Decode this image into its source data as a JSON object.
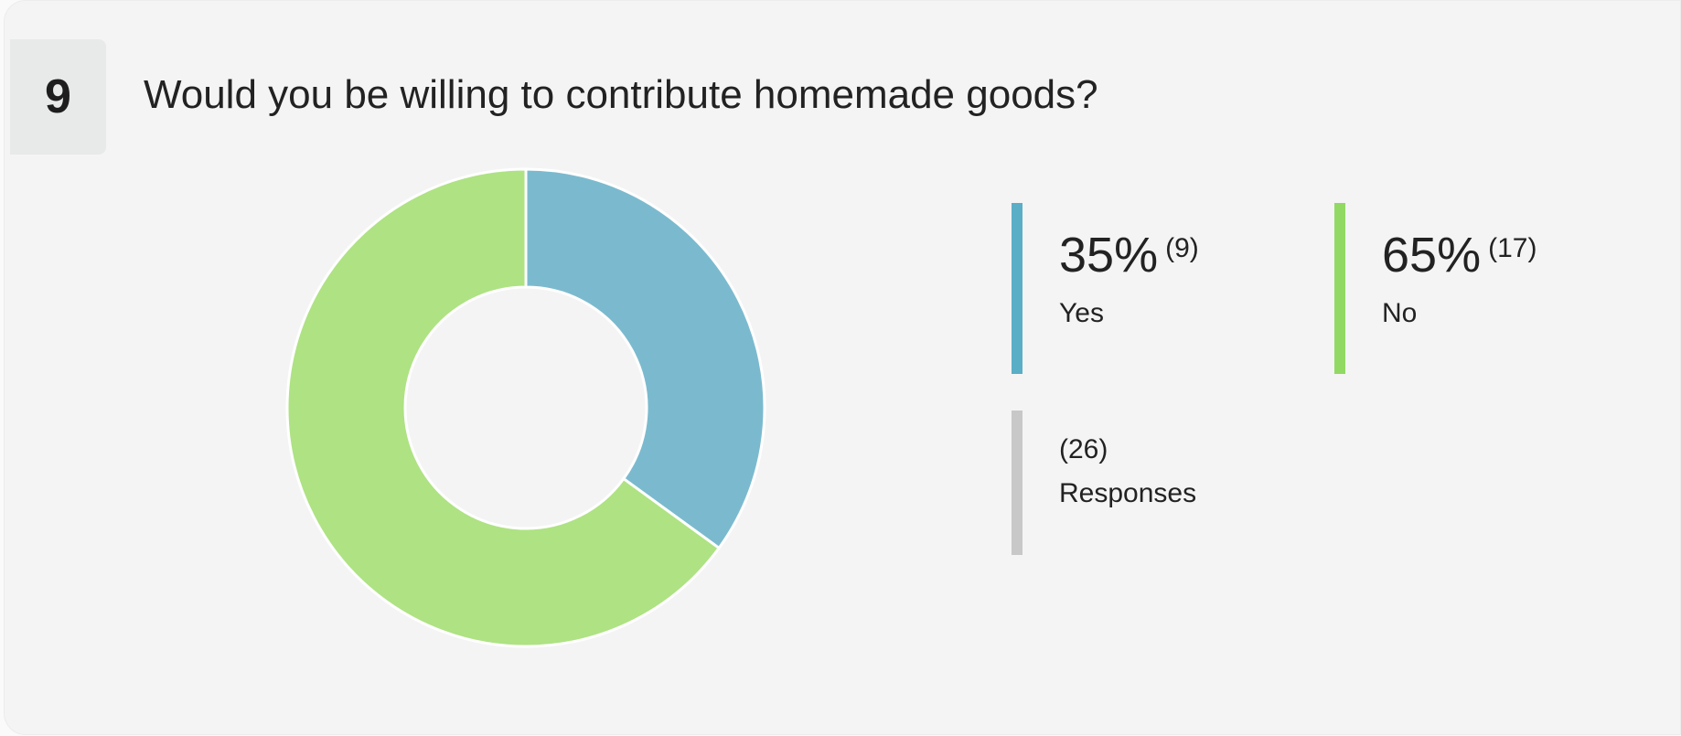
{
  "question_number": 9,
  "chart_data": {
    "type": "donut",
    "title": "Would you be willing to contribute homemade goods?",
    "categories": [
      "Yes",
      "No"
    ],
    "values": [
      35,
      65
    ],
    "value_labels": [
      "35%",
      "65%"
    ],
    "counts": [
      {
        "value": 9,
        "label": "(9)"
      },
      {
        "value": 17,
        "label": "(17)"
      }
    ],
    "colors": [
      "#7bbace",
      "#aee283"
    ],
    "legend_colors": [
      "#5aaec6",
      "#92d964"
    ],
    "total": {
      "value": 26,
      "label": "(26)",
      "name": "Responses"
    },
    "total_color": "#c8c8c8"
  }
}
